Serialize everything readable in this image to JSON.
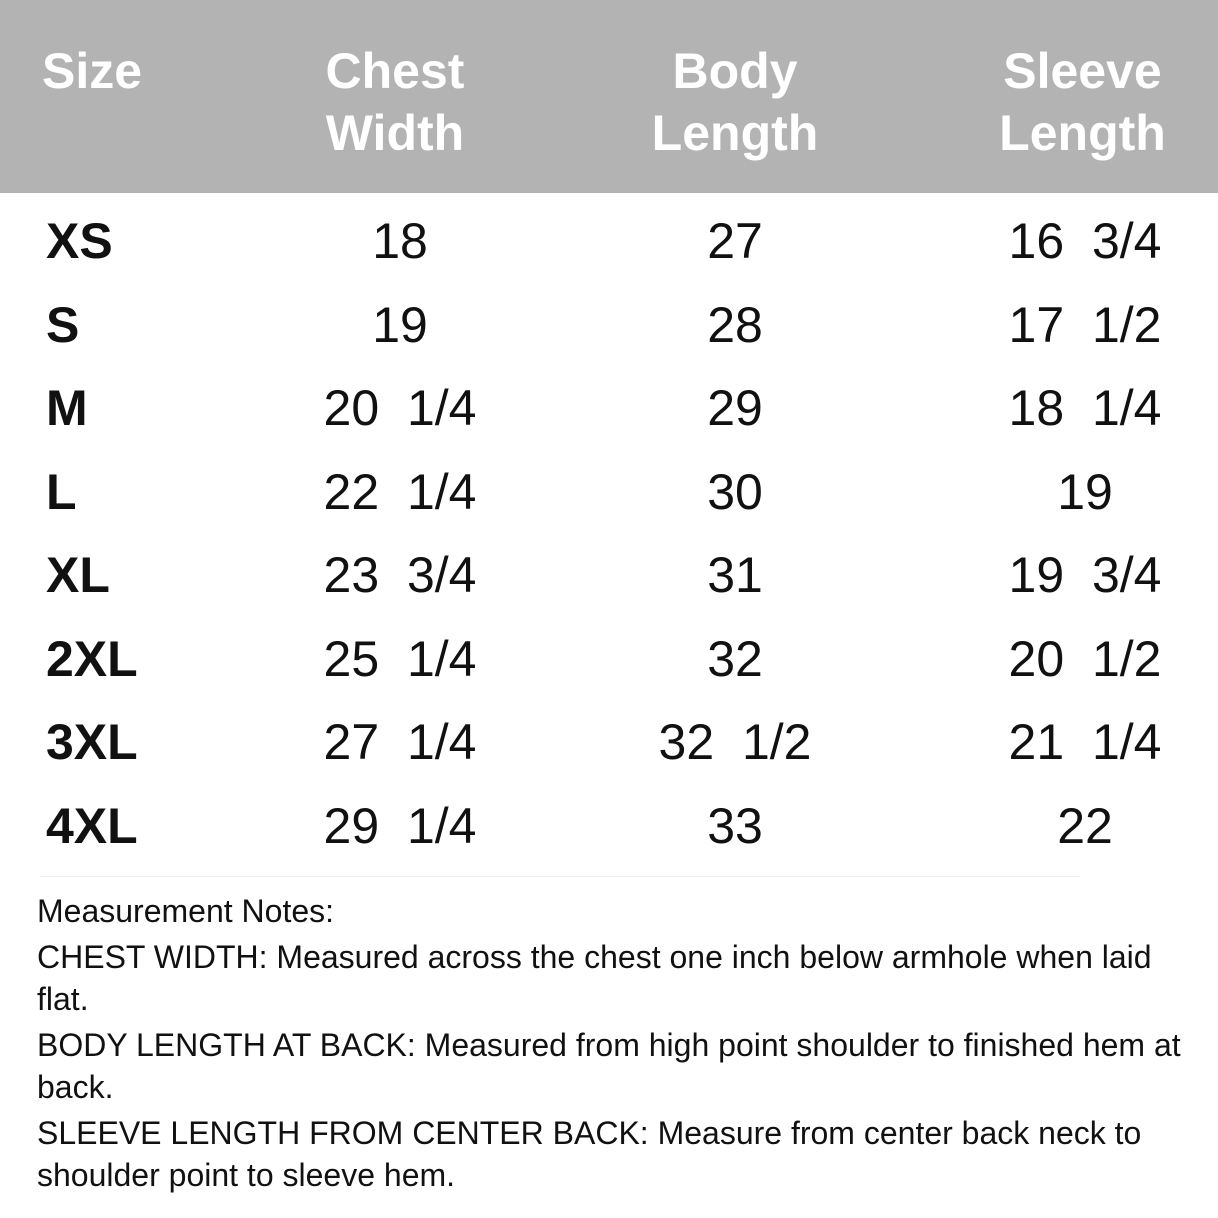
{
  "headers": [
    "Size",
    "Chest Width",
    "Body Length",
    "Sleeve Length"
  ],
  "rows": [
    [
      "XS",
      "18",
      "27",
      "16  3/4"
    ],
    [
      "S",
      "19",
      "28",
      "17  1/2"
    ],
    [
      "M",
      "20  1/4",
      "29",
      "18  1/4"
    ],
    [
      "L",
      "22  1/4",
      "30",
      "19"
    ],
    [
      "XL",
      "23  3/4",
      "31",
      "19  3/4"
    ],
    [
      "2XL",
      "25  1/4",
      "32",
      "20  1/2"
    ],
    [
      "3XL",
      "27  1/4",
      "32  1/2",
      "21  1/4"
    ],
    [
      "4XL",
      "29  1/4",
      "33",
      "22"
    ]
  ],
  "notes": {
    "title": "Measurement Notes:",
    "items": [
      {
        "label": "CHEST WIDTH:",
        "text": " Measured across the chest one inch below armhole when laid flat."
      },
      {
        "label": "BODY LENGTH AT BACK:",
        "text": " Measured from high point shoulder to finished hem at back."
      },
      {
        "label": "SLEEVE LENGTH FROM CENTER BACK:",
        "text": " Measure from center back neck to shoulder point to sleeve hem."
      }
    ]
  },
  "colors": {
    "header_bg": "#b3b3b3"
  }
}
